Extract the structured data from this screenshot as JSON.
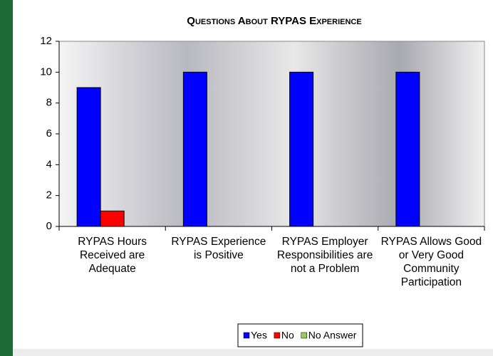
{
  "chart_data": {
    "type": "bar",
    "title": "Questions About RYPAS Experience",
    "categories": [
      "RYPAS Hours Received are Adequate",
      "RYPAS Experience is Positive",
      "RYPAS Employer Responsibilities are not a Problem",
      "RYPAS Allows Good or Very Good Community Participation"
    ],
    "series": [
      {
        "name": "Yes",
        "color": "#0000ff",
        "values": [
          9,
          10,
          10,
          10
        ]
      },
      {
        "name": "No",
        "color": "#ff0000",
        "values": [
          1,
          0,
          0,
          0
        ]
      },
      {
        "name": "No Answer",
        "color": "#99cc55",
        "values": [
          0,
          0,
          0,
          0
        ]
      }
    ],
    "ylim": [
      0,
      12
    ],
    "yticks": [
      0,
      2,
      4,
      6,
      8,
      10,
      12
    ],
    "legend": "bottom"
  }
}
